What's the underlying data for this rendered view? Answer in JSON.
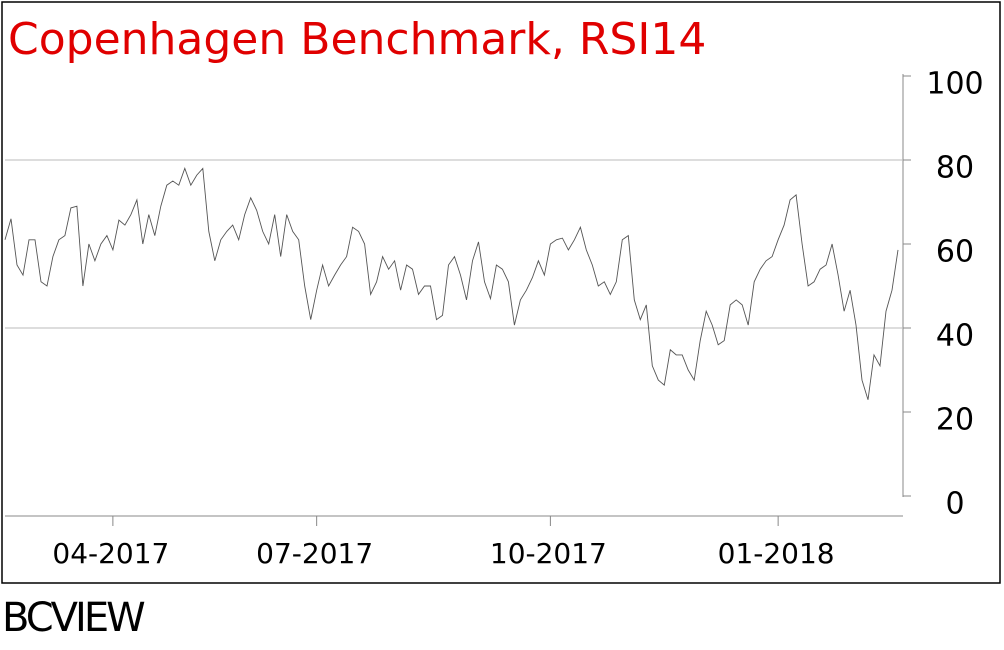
{
  "chart_data": {
    "type": "line",
    "title": "Copenhagen Benchmark, RSI14",
    "title_color": "#e00000",
    "footer": "BCVIEW",
    "color": "#555555",
    "ylim": [
      0,
      100
    ],
    "yticks": [
      0,
      20,
      40,
      60,
      80,
      100
    ],
    "hlines": [
      40,
      80
    ],
    "categories": [
      null,
      null,
      null,
      null,
      null,
      null,
      null,
      null,
      null,
      null,
      null,
      null,
      null,
      null,
      null,
      null,
      null,
      null,
      "04-2017",
      null,
      null,
      null,
      null,
      null,
      null,
      null,
      null,
      null,
      null,
      null,
      null,
      null,
      null,
      null,
      null,
      null,
      null,
      null,
      null,
      null,
      null,
      null,
      null,
      null,
      null,
      null,
      null,
      null,
      null,
      null,
      null,
      null,
      "07-2017",
      null,
      null,
      null,
      null,
      null,
      null,
      null,
      null,
      null,
      null,
      null,
      null,
      null,
      null,
      null,
      null,
      null,
      null,
      null,
      null,
      null,
      null,
      null,
      null,
      null,
      null,
      null,
      null,
      null,
      null,
      null,
      null,
      null,
      null,
      null,
      null,
      null,
      null,
      "10-2017",
      null,
      null,
      null,
      null,
      null,
      null,
      null,
      null,
      null,
      null,
      null,
      null,
      null,
      null,
      null,
      null,
      null,
      null,
      null,
      null,
      null,
      null,
      null,
      null,
      null,
      null,
      null,
      null,
      null,
      null,
      null,
      null,
      null,
      null,
      null,
      null,
      null,
      "01-2018",
      null,
      null,
      null,
      null,
      null,
      null,
      null,
      null,
      null,
      null,
      null,
      null,
      null,
      null,
      null,
      null,
      null,
      null,
      null,
      null
    ],
    "values": [
      61,
      66,
      55,
      52.6,
      61,
      61,
      51,
      50,
      57,
      61,
      62,
      68.6,
      69,
      50,
      60,
      56,
      60,
      62,
      58.6,
      65.7,
      64.5,
      67,
      70.5,
      60,
      67,
      62,
      69,
      74,
      75,
      74,
      78,
      74,
      76.4,
      78,
      63,
      56,
      61,
      63,
      64.5,
      61,
      67,
      71,
      68,
      63,
      60,
      67,
      57,
      67,
      63,
      61,
      50,
      42,
      49,
      55,
      50,
      52.6,
      55,
      57,
      64,
      63,
      60,
      48,
      51,
      57,
      54,
      56,
      49,
      55,
      54,
      48,
      50,
      50,
      42,
      43,
      55,
      57,
      52.6,
      46.7,
      56,
      60.5,
      51,
      47,
      55,
      54,
      51,
      40.7,
      46.7,
      49,
      52,
      56,
      52.6,
      60,
      61,
      61.4,
      58.6,
      61,
      64,
      58.6,
      55,
      50,
      51,
      48,
      51,
      61,
      62,
      46.7,
      42,
      45.5,
      31,
      27.6,
      26.4,
      34.8,
      33.6,
      33.6,
      30,
      27.6,
      37,
      44,
      40.7,
      36,
      37,
      45.5,
      46.7,
      45.5,
      40.7,
      51,
      54,
      56,
      57,
      61,
      64.5,
      70.5,
      71.7,
      60,
      50,
      51,
      54,
      55,
      60,
      52.6,
      44,
      49,
      40.7,
      27.6,
      22.9,
      33.6,
      31,
      44,
      49,
      58.6
    ]
  }
}
